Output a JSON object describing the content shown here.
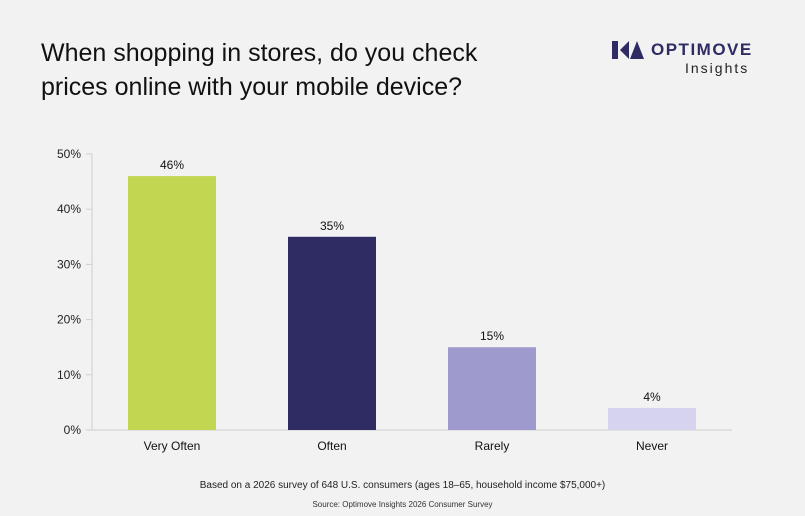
{
  "title_lines": [
    "When shopping in stores, do you check",
    "prices online with your mobile device?"
  ],
  "logo": {
    "brand": "OPTIMOVE",
    "sub": "Insights",
    "icon": "optimove-logo-icon"
  },
  "footnote": "Based on a 2026 survey of 648 U.S. consumers (ages 18–65, household income $75,000+)",
  "source": "Source: Optimove Insights 2026 Consumer Survey",
  "colors": {
    "logo": "#2e2c63",
    "axis": "#cfcfcf",
    "background": "#f2f2f2"
  },
  "chart_data": {
    "type": "bar",
    "categories": [
      "Very Often",
      "Often",
      "Rarely",
      "Never"
    ],
    "values": [
      46,
      35,
      15,
      4
    ],
    "data_labels": [
      "46%",
      "35%",
      "15%",
      "4%"
    ],
    "bar_colors": [
      "#c3d651",
      "#2e2c63",
      "#9f9ace",
      "#d6d3ee"
    ],
    "yticks": [
      "0%",
      "10%",
      "20%",
      "30%",
      "40%",
      "50%"
    ],
    "ylim": [
      0,
      50
    ],
    "grid": false,
    "title": "",
    "xlabel": "",
    "ylabel": ""
  }
}
